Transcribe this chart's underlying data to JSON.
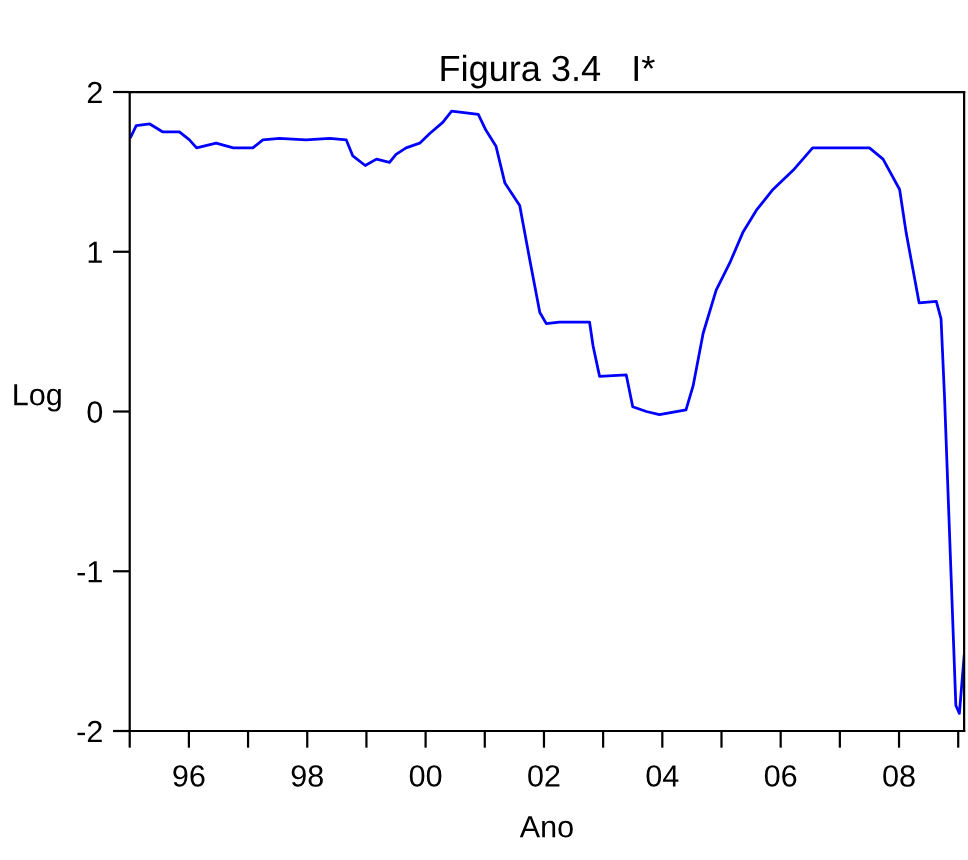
{
  "chart_data": {
    "type": "line",
    "title": "Figura 3.4   I*",
    "xlabel": "Ano",
    "ylabel": "Log",
    "xlim": [
      1995,
      2009.1
    ],
    "ylim": [
      -2,
      2
    ],
    "yticks": [
      -2,
      -1,
      0,
      1,
      2
    ],
    "xticks": [
      {
        "value": 1995,
        "label": null
      },
      {
        "value": 1996,
        "label": "96"
      },
      {
        "value": 1997,
        "label": null
      },
      {
        "value": 1998,
        "label": "98"
      },
      {
        "value": 1999,
        "label": null
      },
      {
        "value": 2000,
        "label": "00"
      },
      {
        "value": 2001,
        "label": null
      },
      {
        "value": 2002,
        "label": "02"
      },
      {
        "value": 2003,
        "label": null
      },
      {
        "value": 2004,
        "label": "04"
      },
      {
        "value": 2005,
        "label": null
      },
      {
        "value": 2006,
        "label": "06"
      },
      {
        "value": 2007,
        "label": null
      },
      {
        "value": 2008,
        "label": "08"
      },
      {
        "value": 2009,
        "label": null
      }
    ],
    "grid": false,
    "legend": false,
    "series": [
      {
        "color": "#0000ff",
        "x": [
          1995.02,
          1995.11,
          1995.34,
          1995.56,
          1995.84,
          1996.01,
          1996.13,
          1996.46,
          1996.75,
          1997.08,
          1997.25,
          1997.53,
          1997.98,
          1998.38,
          1998.66,
          1998.77,
          1998.98,
          1999.17,
          1999.39,
          1999.5,
          1999.67,
          1999.9,
          2000.07,
          2000.29,
          2000.44,
          2000.89,
          2001.02,
          2001.19,
          2001.34,
          2001.59,
          2001.76,
          2001.93,
          2002.04,
          2002.26,
          2002.77,
          2002.83,
          2002.94,
          2003.39,
          2003.5,
          2003.73,
          2003.95,
          2004.4,
          2004.52,
          2004.69,
          2004.91,
          2005.14,
          2005.36,
          2005.59,
          2005.87,
          2006.21,
          2006.54,
          2007.5,
          2007.73,
          2008.01,
          2008.12,
          2008.34,
          2008.63,
          2008.71,
          2008.77,
          2008.96,
          2009.02,
          2009.1
        ],
        "values": [
          1.72,
          1.79,
          1.8,
          1.75,
          1.75,
          1.7,
          1.65,
          1.68,
          1.65,
          1.65,
          1.7,
          1.71,
          1.7,
          1.71,
          1.7,
          1.6,
          1.54,
          1.58,
          1.56,
          1.61,
          1.65,
          1.68,
          1.74,
          1.81,
          1.88,
          1.86,
          1.76,
          1.66,
          1.43,
          1.29,
          0.95,
          0.62,
          0.55,
          0.56,
          0.56,
          0.41,
          0.22,
          0.23,
          0.03,
          0.0,
          -0.02,
          0.01,
          0.16,
          0.49,
          0.76,
          0.93,
          1.12,
          1.26,
          1.39,
          1.51,
          1.65,
          1.65,
          1.58,
          1.39,
          1.12,
          0.68,
          0.69,
          0.58,
          0.08,
          -1.84,
          -1.89,
          -1.53
        ]
      }
    ]
  }
}
